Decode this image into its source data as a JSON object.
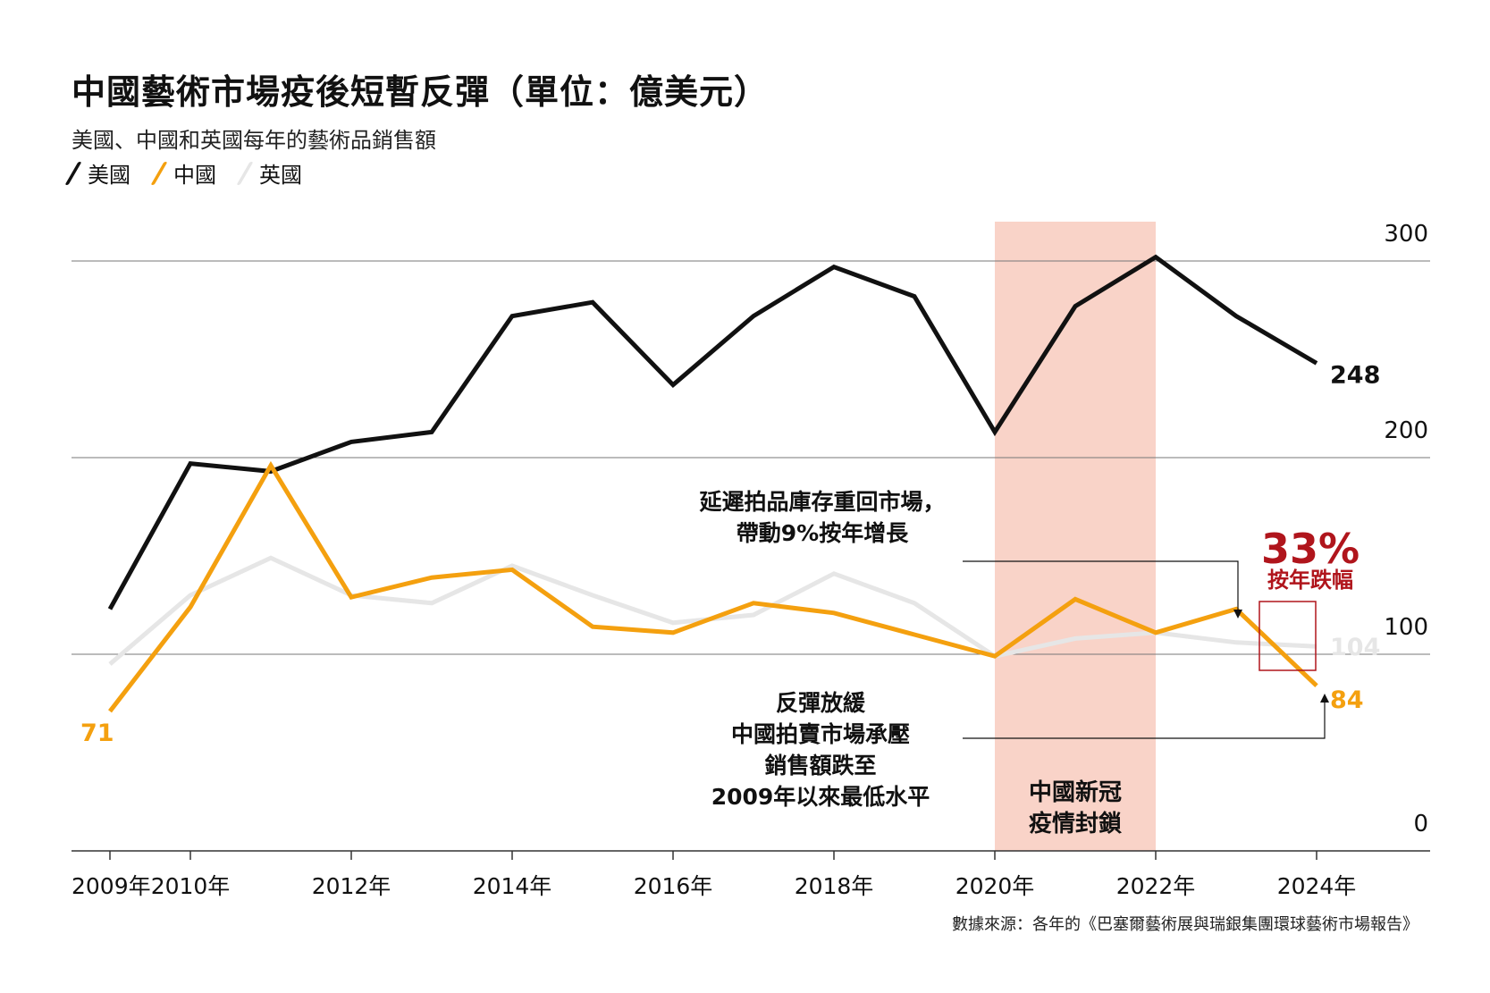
{
  "title": "中國藝術市場疫後短暫反彈（單位：億美元）",
  "subtitle": "美國、中國和英國每年的藝術品銷售額",
  "source": "數據來源：各年的《巴塞爾藝術展與瑞銀集團環球藝術市場報告》",
  "colors": {
    "us": "#111111",
    "china": "#f4a00f",
    "uk": "#e6e6e6",
    "shade": "#f9d3c8",
    "red": "#b0151c"
  },
  "chart_data": {
    "type": "line",
    "title": "中國藝術市場疫後短暫反彈（單位：億美元）",
    "x": [
      2009,
      2010,
      2011,
      2012,
      2013,
      2014,
      2015,
      2016,
      2017,
      2018,
      2019,
      2020,
      2021,
      2022,
      2023,
      2024
    ],
    "x_tick_values": [
      2009,
      2010,
      2012,
      2014,
      2016,
      2018,
      2020,
      2022,
      2024
    ],
    "x_tick_labels": [
      "2009年",
      "2010年",
      "2012年",
      "2014年",
      "2016年",
      "2018年",
      "2020年",
      "2022年",
      "2024年"
    ],
    "y_ticks": [
      0,
      100,
      200,
      300
    ],
    "ylim": [
      0,
      310
    ],
    "grid": true,
    "legend": "top-left",
    "series": [
      {
        "key": "us",
        "name": "美國",
        "values": [
          123,
          197,
          193,
          208,
          213,
          272,
          279,
          237,
          272,
          297,
          282,
          213,
          277,
          302,
          272,
          248
        ]
      },
      {
        "key": "china",
        "name": "中國",
        "values": [
          71,
          124,
          196,
          129,
          139,
          143,
          114,
          111,
          126,
          121,
          110,
          99,
          128,
          111,
          123,
          84
        ]
      },
      {
        "key": "uk",
        "name": "英國",
        "values": [
          95,
          130,
          149,
          130,
          126,
          145,
          130,
          116,
          120,
          141,
          126,
          99,
          108,
          111,
          106,
          104
        ]
      }
    ],
    "end_labels": {
      "us": "248",
      "china": "84",
      "uk": "104"
    },
    "start_labels": {
      "china": "71"
    },
    "shaded_region": {
      "from": 2020,
      "to": 2022,
      "label_lines": [
        "中國新冠",
        "疫情封鎖"
      ]
    },
    "annotations": {
      "rebound": [
        "延遲拍品庫存重回市場，",
        "帶動9%按年增長"
      ],
      "slowdown": [
        "反彈放緩",
        "中國拍賣市場承壓",
        "銷售額跌至",
        "2009年以來最低水平"
      ],
      "drop_value": "33%",
      "drop_label": "按年跌幅"
    }
  }
}
